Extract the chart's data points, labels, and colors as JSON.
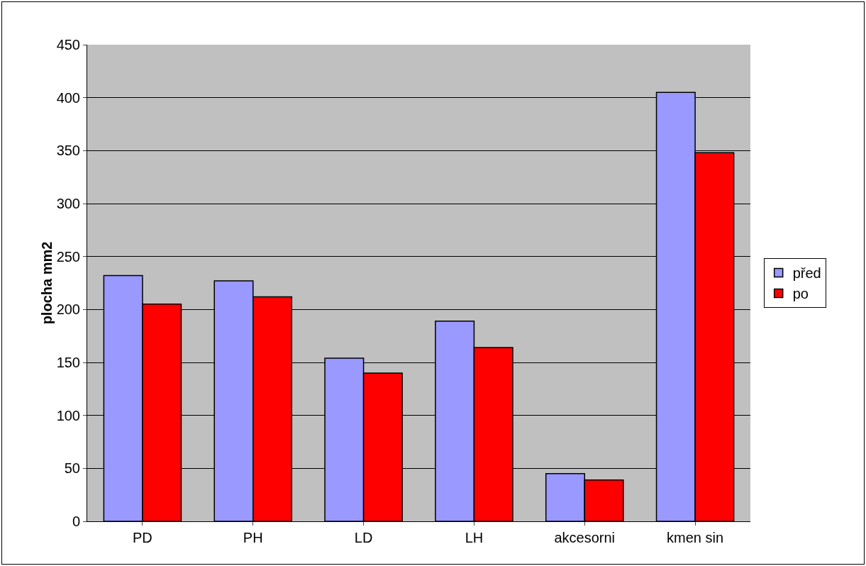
{
  "chart_data": {
    "type": "bar",
    "ylabel": "plocha mm2",
    "categories": [
      "PD",
      "PH",
      "LD",
      "LH",
      "akcesorni",
      "kmen sin"
    ],
    "series": [
      {
        "name": "před",
        "color": "#9999ff",
        "values": [
          232,
          227,
          154,
          189,
          45,
          405
        ]
      },
      {
        "name": "po",
        "color": "#ff0000",
        "values": [
          205,
          212,
          140,
          164,
          39,
          348
        ]
      }
    ],
    "ylim": [
      0,
      450
    ],
    "yticks": [
      0,
      50,
      100,
      150,
      200,
      250,
      300,
      350,
      400,
      450
    ],
    "grid": "y",
    "legend": "right"
  }
}
